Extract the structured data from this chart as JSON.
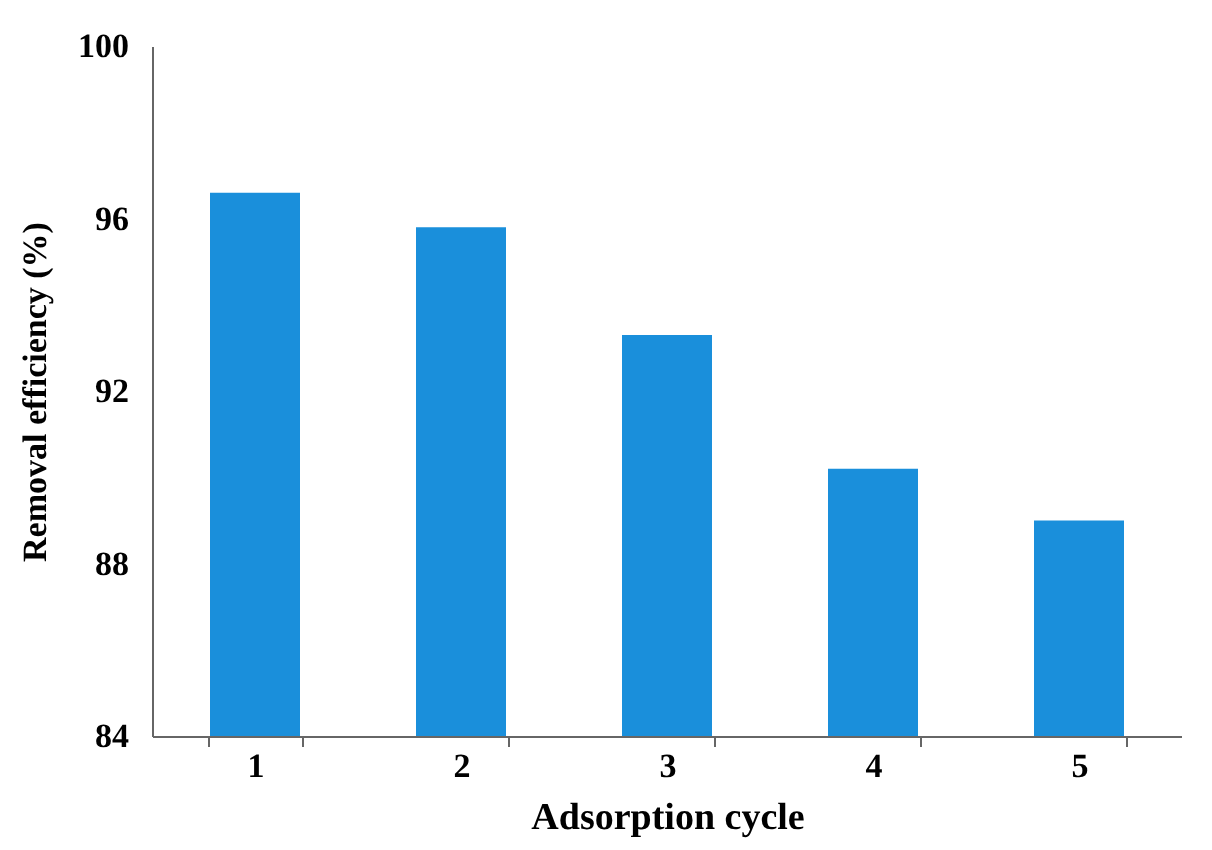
{
  "chart_data": {
    "type": "bar",
    "xlabel": "Adsorption cycle",
    "ylabel": "Removal efficiency (%)",
    "categories": [
      "1",
      "2",
      "3",
      "4",
      "5"
    ],
    "values": [
      96.6,
      95.8,
      93.3,
      90.2,
      89.0
    ],
    "color": "#1a8fdb",
    "ylim": [
      84,
      100
    ],
    "yticks": [
      84,
      88,
      92,
      96,
      100
    ],
    "grid": false
  }
}
